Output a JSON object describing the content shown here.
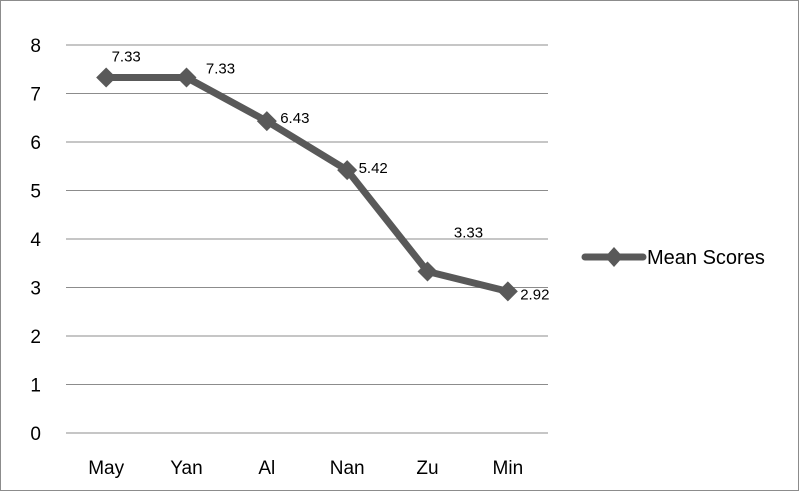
{
  "chart_data": {
    "type": "line",
    "categories": [
      "May",
      "Yan",
      "Al",
      "Nan",
      "Zu",
      "Min"
    ],
    "series": [
      {
        "name": "Mean Scores",
        "values": [
          7.33,
          7.33,
          6.43,
          5.42,
          3.33,
          2.92
        ],
        "color": "#595959"
      }
    ],
    "data_labels": [
      "7.33",
      "7.33",
      "6.43",
      "5.42",
      "3.33",
      "2.92"
    ],
    "y_ticks": [
      "0",
      "1",
      "2",
      "3",
      "4",
      "5",
      "6",
      "7",
      "8"
    ],
    "ylim": [
      0,
      8
    ],
    "title": "",
    "xlabel": "",
    "ylabel": "",
    "grid": true,
    "legend_position": "right",
    "line_color": "#595959",
    "gridline_color": "#8c8c8c"
  }
}
